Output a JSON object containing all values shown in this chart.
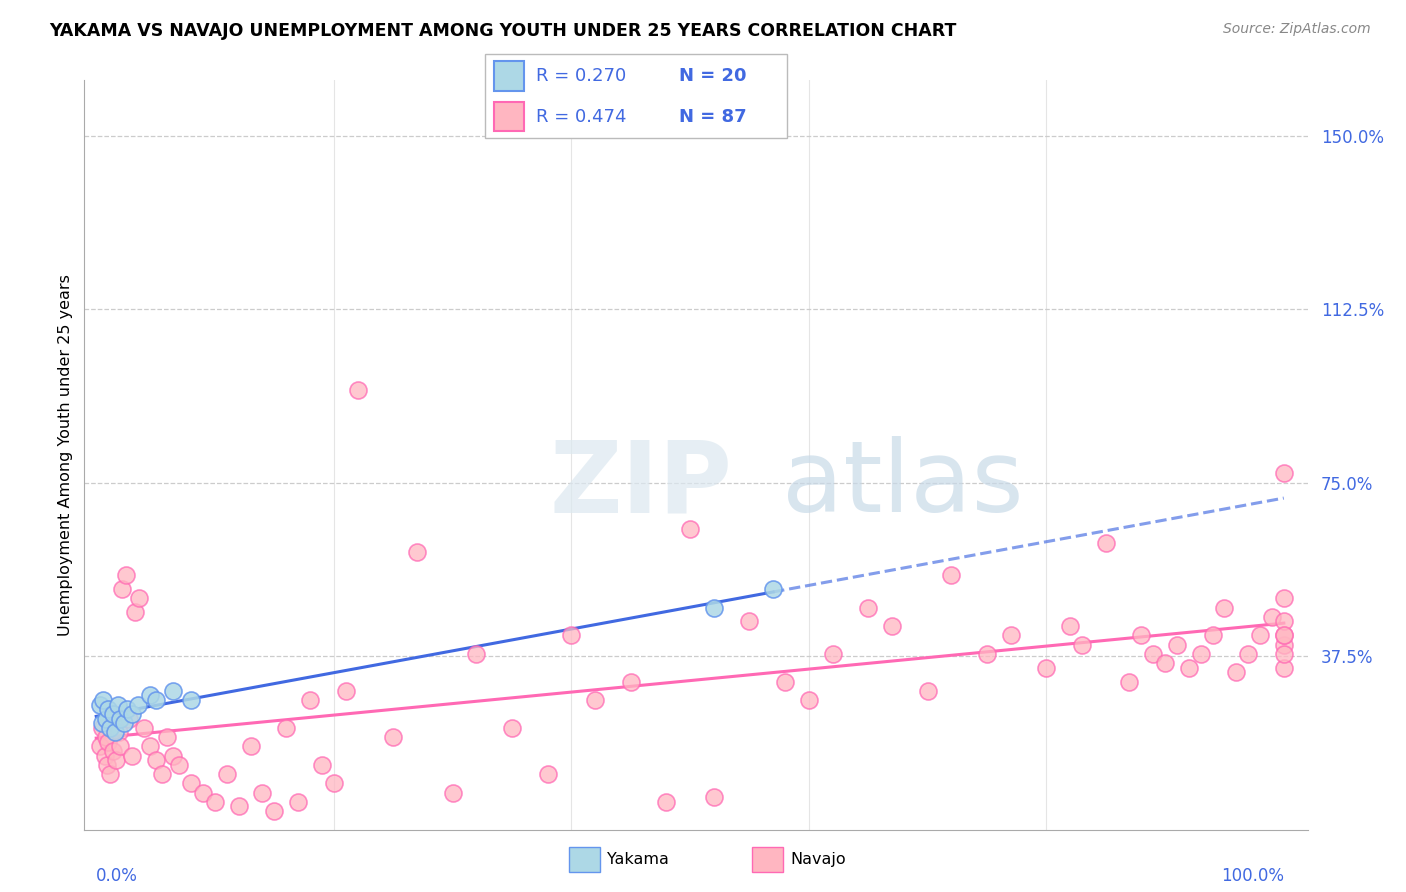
{
  "title": "YAKAMA VS NAVAJO UNEMPLOYMENT AMONG YOUTH UNDER 25 YEARS CORRELATION CHART",
  "source": "Source: ZipAtlas.com",
  "ylabel": "Unemployment Among Youth under 25 years",
  "yakama_color_fill": "#ADD8E6",
  "yakama_color_edge": "#6495ED",
  "navajo_color_fill": "#FFB6C1",
  "navajo_color_edge": "#FF69B4",
  "yakama_line_color": "#4169E1",
  "navajo_line_color": "#FF69B4",
  "text_color_blue": "#4169E1",
  "legend_r_yakama": "R = 0.270",
  "legend_n_yakama": "N = 20",
  "legend_r_navajo": "R = 0.474",
  "legend_n_navajo": "N = 87",
  "xlim": [
    0,
    100
  ],
  "ylim": [
    0,
    150
  ],
  "yticks": [
    37.5,
    75.0,
    112.5,
    150.0
  ],
  "xtick_labels_left": "0.0%",
  "xtick_labels_right": "100.0%",
  "yakama_x": [
    0.3,
    0.5,
    0.6,
    0.8,
    1.0,
    1.2,
    1.4,
    1.6,
    1.8,
    2.0,
    2.3,
    2.6,
    3.0,
    3.5,
    4.5,
    5.0,
    6.5,
    8.0,
    52.0,
    57.0
  ],
  "yakama_y": [
    27.0,
    23.0,
    28.0,
    24.0,
    26.0,
    22.0,
    25.0,
    21.0,
    27.0,
    24.0,
    23.0,
    26.0,
    25.0,
    27.0,
    29.0,
    28.0,
    30.0,
    28.0,
    48.0,
    52.0
  ],
  "navajo_x": [
    0.3,
    0.5,
    0.7,
    0.8,
    0.9,
    1.0,
    1.2,
    1.4,
    1.5,
    1.7,
    1.9,
    2.0,
    2.2,
    2.5,
    2.8,
    3.0,
    3.3,
    3.6,
    4.0,
    4.5,
    5.0,
    5.5,
    6.0,
    6.5,
    7.0,
    8.0,
    9.0,
    10.0,
    11.0,
    12.0,
    13.0,
    14.0,
    15.0,
    16.0,
    17.0,
    18.0,
    19.0,
    20.0,
    21.0,
    22.0,
    25.0,
    27.0,
    30.0,
    32.0,
    35.0,
    38.0,
    40.0,
    42.0,
    45.0,
    48.0,
    50.0,
    52.0,
    55.0,
    58.0,
    60.0,
    62.0,
    65.0,
    67.0,
    70.0,
    72.0,
    75.0,
    77.0,
    80.0,
    82.0,
    83.0,
    85.0,
    87.0,
    88.0,
    89.0,
    90.0,
    91.0,
    92.0,
    93.0,
    94.0,
    95.0,
    96.0,
    97.0,
    98.0,
    99.0,
    100.0,
    100.0,
    100.0,
    100.0,
    100.0,
    100.0,
    100.0,
    100.0
  ],
  "navajo_y": [
    18.0,
    22.0,
    16.0,
    20.0,
    14.0,
    19.0,
    12.0,
    17.0,
    25.0,
    15.0,
    21.0,
    18.0,
    52.0,
    55.0,
    24.0,
    16.0,
    47.0,
    50.0,
    22.0,
    18.0,
    15.0,
    12.0,
    20.0,
    16.0,
    14.0,
    10.0,
    8.0,
    6.0,
    12.0,
    5.0,
    18.0,
    8.0,
    4.0,
    22.0,
    6.0,
    28.0,
    14.0,
    10.0,
    30.0,
    95.0,
    20.0,
    60.0,
    8.0,
    38.0,
    22.0,
    12.0,
    42.0,
    28.0,
    32.0,
    6.0,
    65.0,
    7.0,
    45.0,
    32.0,
    28.0,
    38.0,
    48.0,
    44.0,
    30.0,
    55.0,
    38.0,
    42.0,
    35.0,
    44.0,
    40.0,
    62.0,
    32.0,
    42.0,
    38.0,
    36.0,
    40.0,
    35.0,
    38.0,
    42.0,
    48.0,
    34.0,
    38.0,
    42.0,
    46.0,
    50.0,
    40.0,
    35.0,
    42.0,
    38.0,
    45.0,
    77.0,
    42.0
  ],
  "watermark_zip_color": "#dce8f0",
  "watermark_atlas_color": "#c8dae8"
}
